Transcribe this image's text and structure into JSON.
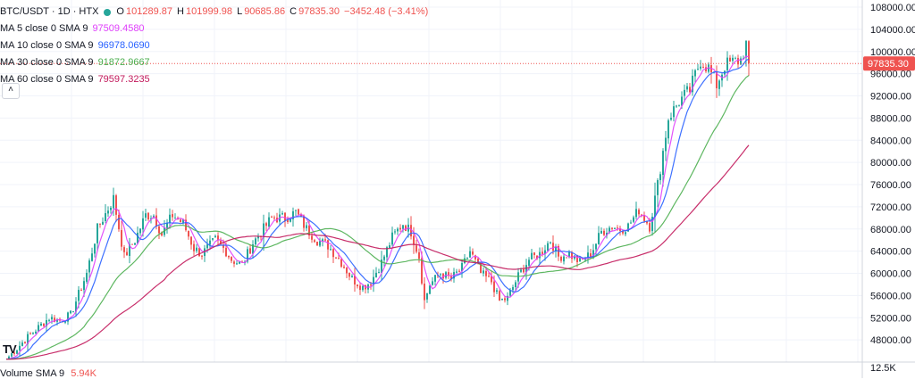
{
  "legend": {
    "symbol": "BTC/USDT · 1D · HTX",
    "open": "101289.87",
    "high": "101999.98",
    "low": "90685.86",
    "close": "97835.30",
    "change": "−3452.48 (−3.41%)",
    "ma": [
      {
        "label": "MA 5 close 0 SMA 9",
        "value": "97509.4580",
        "color": "#e040fb"
      },
      {
        "label": "MA 10 close 0 SMA 9",
        "value": "96978.0690",
        "color": "#2962ff"
      },
      {
        "label": "MA 30 close 0 SMA 9",
        "value": "91872.9667",
        "color": "#4caf50"
      },
      {
        "label": "MA 60 close 0 SMA 9",
        "value": "79597.3235",
        "color": "#c2185b"
      }
    ],
    "collapse_icon": "chevron-up-icon"
  },
  "volume": {
    "label": "Volume SMA 9",
    "value": "5.94K",
    "axis_label": "12.5K"
  },
  "logo": "TV",
  "price_tag": "97835.30",
  "colors": {
    "up": "#26a69a",
    "down": "#ef5350",
    "price_line": "#ef5350"
  },
  "chart_data": {
    "type": "candlestick",
    "title": "BTC/USDT · 1D · HTX",
    "y_ticks": [
      48000,
      52000,
      56000,
      60000,
      64000,
      68000,
      72000,
      76000,
      80000,
      84000,
      88000,
      92000,
      96000,
      100000,
      104000,
      108000
    ],
    "ylim": [
      44000,
      108000
    ],
    "current_price": 97835.3,
    "grid": true,
    "anchors": [
      [
        0,
        44500
      ],
      [
        8,
        48500
      ],
      [
        16,
        52000
      ],
      [
        20,
        51500
      ],
      [
        24,
        52500
      ],
      [
        30,
        60000
      ],
      [
        34,
        68000
      ],
      [
        40,
        73500
      ],
      [
        44,
        63000
      ],
      [
        48,
        66000
      ],
      [
        52,
        70500
      ],
      [
        55,
        70500
      ],
      [
        58,
        67000
      ],
      [
        62,
        70500
      ],
      [
        66,
        69000
      ],
      [
        70,
        64500
      ],
      [
        73,
        63500
      ],
      [
        78,
        66000
      ],
      [
        82,
        64000
      ],
      [
        84,
        62500
      ],
      [
        88,
        61500
      ],
      [
        92,
        65500
      ],
      [
        96,
        68000
      ],
      [
        99,
        70000
      ],
      [
        104,
        70000
      ],
      [
        108,
        71000
      ],
      [
        112,
        68000
      ],
      [
        116,
        66000
      ],
      [
        120,
        65000
      ],
      [
        125,
        62000
      ],
      [
        129,
        59000
      ],
      [
        133,
        57500
      ],
      [
        136,
        58500
      ],
      [
        140,
        62000
      ],
      [
        144,
        66500
      ],
      [
        148,
        69000
      ],
      [
        151,
        67500
      ],
      [
        154,
        63000
      ],
      [
        156,
        55000
      ],
      [
        158,
        58000
      ],
      [
        162,
        60000
      ],
      [
        166,
        59000
      ],
      [
        170,
        61000
      ],
      [
        173,
        64000
      ],
      [
        177,
        60000
      ],
      [
        181,
        58500
      ],
      [
        184,
        55000
      ],
      [
        187,
        55500
      ],
      [
        191,
        59500
      ],
      [
        195,
        62500
      ],
      [
        199,
        63500
      ],
      [
        203,
        66000
      ],
      [
        206,
        63000
      ],
      [
        210,
        63500
      ],
      [
        214,
        62000
      ],
      [
        218,
        63500
      ],
      [
        222,
        67500
      ],
      [
        226,
        68500
      ],
      [
        229,
        68000
      ],
      [
        232,
        68500
      ],
      [
        236,
        71500
      ],
      [
        240,
        68500
      ],
      [
        243,
        76000
      ],
      [
        247,
        88000
      ],
      [
        251,
        91000
      ],
      [
        255,
        93000
      ],
      [
        259,
        98500
      ],
      [
        262,
        97000
      ],
      [
        265,
        94000
      ],
      [
        268,
        97500
      ],
      [
        271,
        98000
      ],
      [
        274,
        98500
      ],
      [
        276,
        101300
      ],
      [
        277,
        97835
      ]
    ],
    "ma_series": [
      {
        "name": "MA 5 close 0 SMA 9",
        "period": 5,
        "last": 97509.458
      },
      {
        "name": "MA 10 close 0 SMA 9",
        "period": 10,
        "last": 96978.069
      },
      {
        "name": "MA 30 close 0 SMA 9",
        "period": 30,
        "last": 91872.9667
      },
      {
        "name": "MA 60 close 0 SMA 9",
        "period": 60,
        "last": 79597.3235
      }
    ],
    "volume_axis_max": 12500
  }
}
